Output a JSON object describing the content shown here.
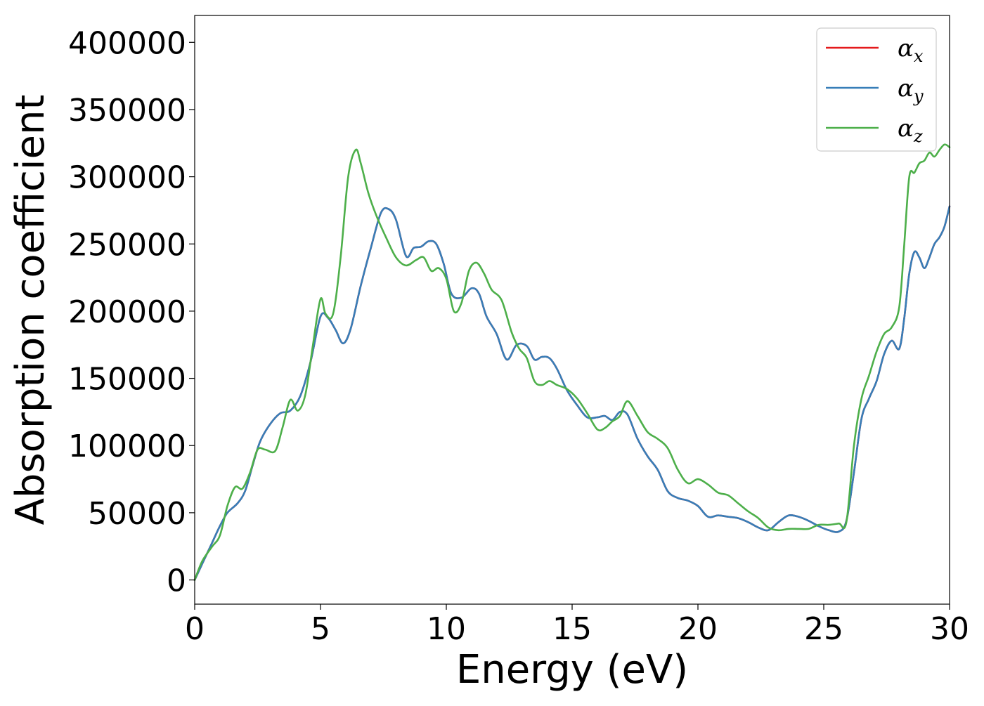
{
  "chart_data": {
    "type": "line",
    "title": "",
    "xlabel": "Energy (eV)",
    "ylabel": "Absorption coefficient",
    "xlim": [
      0,
      30
    ],
    "ylim": [
      -18000,
      420000
    ],
    "xticks": [
      "0",
      "5",
      "10",
      "15",
      "20",
      "25",
      "30"
    ],
    "yticks": [
      "0",
      "50000",
      "100000",
      "150000",
      "200000",
      "250000",
      "300000",
      "350000",
      "400000"
    ],
    "grid": false,
    "legend_position": "top-right",
    "series": [
      {
        "name": "α",
        "subscript": "x",
        "color": "#e41a1c",
        "x": [
          0,
          0.3,
          0.7,
          1.0,
          1.3,
          1.7,
          2.0,
          2.3,
          2.6,
          3.0,
          3.4,
          3.8,
          4.2,
          4.6,
          5.0,
          5.3,
          5.6,
          5.9,
          6.2,
          6.6,
          7.0,
          7.4,
          7.7,
          8.0,
          8.4,
          8.7,
          9.0,
          9.3,
          9.6,
          9.9,
          10.2,
          10.6,
          11.0,
          11.3,
          11.6,
          12.0,
          12.4,
          12.8,
          13.2,
          13.5,
          13.8,
          14.1,
          14.4,
          14.8,
          15.2,
          15.6,
          16.0,
          16.3,
          16.6,
          16.9,
          17.2,
          17.6,
          18.0,
          18.4,
          18.8,
          19.2,
          19.6,
          20.0,
          20.4,
          20.8,
          21.2,
          21.6,
          22.0,
          22.4,
          22.8,
          23.2,
          23.6,
          24.0,
          24.4,
          24.8,
          25.2,
          25.6,
          25.9,
          26.2,
          26.5,
          26.8,
          27.1,
          27.4,
          27.7,
          28.0,
          28.2,
          28.4,
          28.6,
          28.8,
          29.0,
          29.2,
          29.4,
          29.6,
          29.8,
          30.0
        ],
        "values": [
          0,
          12000,
          28000,
          40000,
          50000,
          57000,
          66000,
          85000,
          103000,
          116000,
          124000,
          126000,
          137000,
          162000,
          196000,
          195000,
          186000,
          176000,
          187000,
          219000,
          247000,
          273000,
          276000,
          268000,
          241000,
          247000,
          248000,
          252000,
          250000,
          235000,
          213000,
          210000,
          217000,
          213000,
          196000,
          183000,
          164000,
          175000,
          174000,
          164000,
          166000,
          165000,
          157000,
          141000,
          130000,
          121000,
          121000,
          122000,
          119000,
          125000,
          123000,
          105000,
          92000,
          82000,
          66000,
          61000,
          59000,
          55000,
          47000,
          48000,
          47000,
          46000,
          43000,
          39000,
          37000,
          43000,
          48000,
          47000,
          44000,
          40000,
          37000,
          36000,
          44000,
          80000,
          120000,
          135000,
          148000,
          168000,
          178000,
          172000,
          195000,
          228000,
          244000,
          240000,
          232000,
          240000,
          250000,
          255000,
          263000,
          278000
        ]
      },
      {
        "name": "α",
        "subscript": "y",
        "color": "#377eb8",
        "x": [
          0,
          0.3,
          0.7,
          1.0,
          1.3,
          1.7,
          2.0,
          2.3,
          2.6,
          3.0,
          3.4,
          3.8,
          4.2,
          4.6,
          5.0,
          5.3,
          5.6,
          5.9,
          6.2,
          6.6,
          7.0,
          7.4,
          7.7,
          8.0,
          8.4,
          8.7,
          9.0,
          9.3,
          9.6,
          9.9,
          10.2,
          10.6,
          11.0,
          11.3,
          11.6,
          12.0,
          12.4,
          12.8,
          13.2,
          13.5,
          13.8,
          14.1,
          14.4,
          14.8,
          15.2,
          15.6,
          16.0,
          16.3,
          16.6,
          16.9,
          17.2,
          17.6,
          18.0,
          18.4,
          18.8,
          19.2,
          19.6,
          20.0,
          20.4,
          20.8,
          21.2,
          21.6,
          22.0,
          22.4,
          22.8,
          23.2,
          23.6,
          24.0,
          24.4,
          24.8,
          25.2,
          25.6,
          25.9,
          26.2,
          26.5,
          26.8,
          27.1,
          27.4,
          27.7,
          28.0,
          28.2,
          28.4,
          28.6,
          28.8,
          29.0,
          29.2,
          29.4,
          29.6,
          29.8,
          30.0
        ],
        "values": [
          0,
          12000,
          28000,
          40000,
          50000,
          57000,
          66000,
          85000,
          103000,
          116000,
          124000,
          126000,
          137000,
          162000,
          196000,
          195000,
          186000,
          176000,
          187000,
          219000,
          247000,
          273000,
          276000,
          268000,
          241000,
          247000,
          248000,
          252000,
          250000,
          235000,
          213000,
          210000,
          217000,
          213000,
          196000,
          183000,
          164000,
          175000,
          174000,
          164000,
          166000,
          165000,
          157000,
          141000,
          130000,
          121000,
          121000,
          122000,
          119000,
          125000,
          123000,
          105000,
          92000,
          82000,
          66000,
          61000,
          59000,
          55000,
          47000,
          48000,
          47000,
          46000,
          43000,
          39000,
          37000,
          43000,
          48000,
          47000,
          44000,
          40000,
          37000,
          36000,
          44000,
          80000,
          120000,
          135000,
          148000,
          168000,
          178000,
          172000,
          195000,
          228000,
          244000,
          240000,
          232000,
          240000,
          250000,
          255000,
          263000,
          278000
        ]
      },
      {
        "name": "α",
        "subscript": "z",
        "color": "#4daf4a",
        "x": [
          0,
          0.3,
          0.7,
          1.0,
          1.3,
          1.6,
          1.9,
          2.2,
          2.5,
          2.8,
          3.2,
          3.5,
          3.8,
          4.1,
          4.4,
          4.7,
          5.0,
          5.2,
          5.5,
          5.8,
          6.1,
          6.4,
          6.6,
          6.9,
          7.2,
          7.6,
          8.0,
          8.4,
          8.8,
          9.1,
          9.4,
          9.7,
          10.0,
          10.3,
          10.6,
          10.9,
          11.2,
          11.5,
          11.8,
          12.2,
          12.6,
          12.9,
          13.2,
          13.5,
          13.8,
          14.1,
          14.4,
          14.8,
          15.2,
          15.6,
          16.0,
          16.3,
          16.6,
          16.9,
          17.2,
          17.6,
          18.0,
          18.4,
          18.8,
          19.2,
          19.6,
          20.0,
          20.4,
          20.8,
          21.2,
          21.6,
          22.0,
          22.4,
          22.8,
          23.2,
          23.6,
          24.0,
          24.4,
          24.8,
          25.2,
          25.6,
          25.9,
          26.2,
          26.5,
          26.8,
          27.1,
          27.4,
          27.7,
          28.0,
          28.2,
          28.4,
          28.6,
          28.8,
          29.0,
          29.2,
          29.4,
          29.6,
          29.8,
          30.0
        ],
        "values": [
          0,
          14000,
          25000,
          33000,
          55000,
          69000,
          68000,
          80000,
          97000,
          97000,
          96000,
          114000,
          134000,
          126000,
          138000,
          175000,
          209000,
          198000,
          198000,
          240000,
          300000,
          320000,
          310000,
          288000,
          272000,
          255000,
          240000,
          234000,
          238000,
          240000,
          230000,
          232000,
          224000,
          200000,
          206000,
          230000,
          236000,
          228000,
          216000,
          208000,
          184000,
          172000,
          165000,
          148000,
          145000,
          148000,
          145000,
          142000,
          135000,
          124000,
          112000,
          113000,
          118000,
          122000,
          133000,
          122000,
          110000,
          105000,
          98000,
          82000,
          72000,
          75000,
          71000,
          65000,
          63000,
          57000,
          51000,
          46000,
          39000,
          37000,
          38000,
          38000,
          38000,
          41000,
          41000,
          42000,
          43000,
          100000,
          135000,
          152000,
          170000,
          183000,
          188000,
          203000,
          250000,
          300000,
          303000,
          310000,
          312000,
          318000,
          315000,
          320000,
          324000,
          322000
        ]
      }
    ]
  }
}
